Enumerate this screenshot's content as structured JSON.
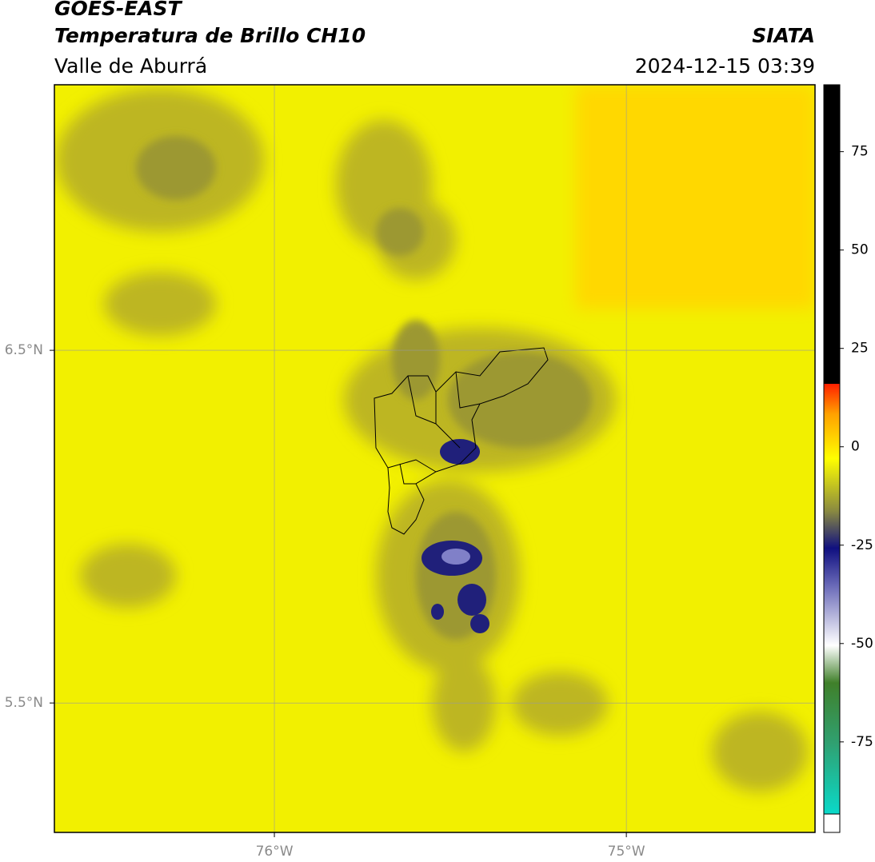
{
  "header": {
    "satellite": "GOES-EAST",
    "product": "Temperatura de Brillo CH10",
    "region": "Valle de Aburrá",
    "agency": "SIATA",
    "datetime": "2024-12-15 03:39"
  },
  "map": {
    "xlim": [
      -76.625,
      -74.464
    ],
    "ylim": [
      5.133,
      7.253
    ],
    "xticks": [
      {
        "value": -76,
        "label": "76°W"
      },
      {
        "value": -75,
        "label": "75°W"
      }
    ],
    "yticks": [
      {
        "value": 6.5,
        "label": "6.5°N"
      },
      {
        "value": 5.5,
        "label": "5.5°N"
      }
    ],
    "grid": true
  },
  "colorbar": {
    "lim": [
      -98,
      92
    ],
    "ticks": [
      75,
      50,
      25,
      0,
      -25,
      -50,
      -75
    ]
  }
}
